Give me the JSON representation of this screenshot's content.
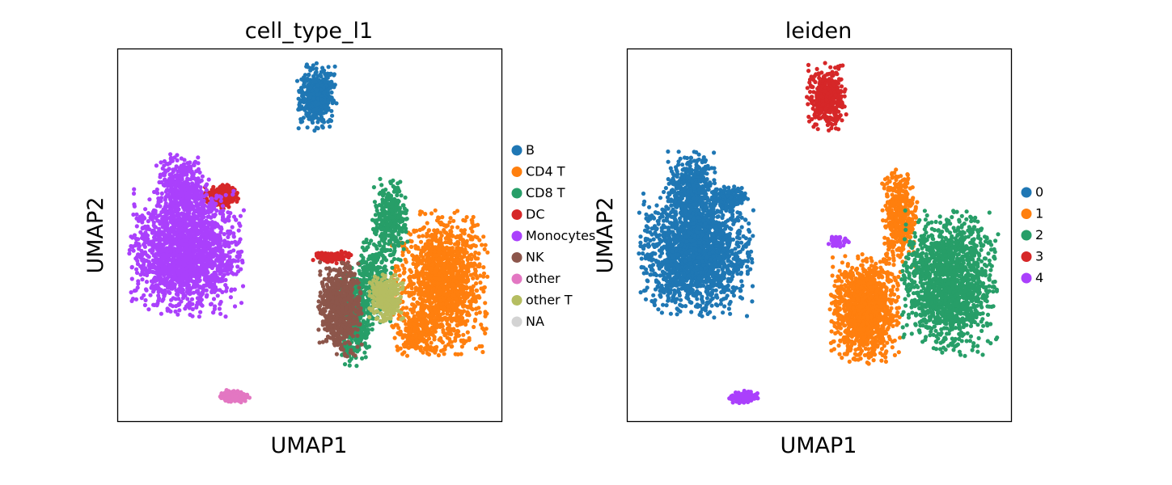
{
  "chart_data": [
    {
      "type": "scatter",
      "title": "cell_type_l1",
      "xlabel": "UMAP1",
      "ylabel": "UMAP2",
      "xlim": [
        0,
        100
      ],
      "ylim": [
        0,
        100
      ],
      "grid": false,
      "ticks": false,
      "legend_position": "right",
      "series": [
        {
          "name": "B",
          "color": "#1f77b4",
          "clusters": [
            {
              "cx": 52,
              "cy": 87,
              "rx": 4.5,
              "ry": 8,
              "n": 420
            }
          ]
        },
        {
          "name": "CD4 T",
          "color": "#ff7f0e",
          "clusters": [
            {
              "cx": 84,
              "cy": 37,
              "rx": 11,
              "ry": 17,
              "n": 1400
            },
            {
              "cx": 78,
              "cy": 24,
              "rx": 5,
              "ry": 6,
              "n": 200
            }
          ]
        },
        {
          "name": "CD8 T",
          "color": "#279e68",
          "clusters": [
            {
              "cx": 71,
              "cy": 54,
              "rx": 4,
              "ry": 10,
              "n": 320
            },
            {
              "cx": 62,
              "cy": 28,
              "rx": 4,
              "ry": 12,
              "n": 400
            },
            {
              "cx": 67,
              "cy": 38,
              "rx": 4,
              "ry": 10,
              "n": 260
            }
          ]
        },
        {
          "name": "DC",
          "color": "#d62728",
          "clusters": [
            {
              "cx": 27,
              "cy": 60,
              "rx": 4,
              "ry": 3,
              "n": 200
            },
            {
              "cx": 56,
              "cy": 44,
              "rx": 4.5,
              "ry": 1.5,
              "n": 110
            }
          ]
        },
        {
          "name": "Monocytes",
          "color": "#aa40fc",
          "clusters": [
            {
              "cx": 18,
              "cy": 45,
              "rx": 13,
              "ry": 15,
              "n": 1800
            },
            {
              "cx": 17,
              "cy": 62,
              "rx": 6,
              "ry": 9,
              "n": 420
            }
          ]
        },
        {
          "name": "NK",
          "color": "#8c564b",
          "clusters": [
            {
              "cx": 58,
              "cy": 30,
              "rx": 5,
              "ry": 11,
              "n": 650
            }
          ]
        },
        {
          "name": "other",
          "color": "#e377c2",
          "clusters": [
            {
              "cx": 30.5,
              "cy": 6.5,
              "rx": 3.5,
              "ry": 1.6,
              "n": 150
            }
          ]
        },
        {
          "name": "other T",
          "color": "#b5bd61",
          "clusters": [
            {
              "cx": 70,
              "cy": 33,
              "rx": 4,
              "ry": 6,
              "n": 280
            }
          ]
        },
        {
          "name": "NA",
          "color": "#d3d3d3",
          "clusters": []
        }
      ]
    },
    {
      "type": "scatter",
      "title": "leiden",
      "xlabel": "UMAP1",
      "ylabel": "UMAP2",
      "xlim": [
        0,
        100
      ],
      "ylim": [
        0,
        100
      ],
      "grid": false,
      "ticks": false,
      "legend_position": "right",
      "series": [
        {
          "name": "0",
          "color": "#1f77b4",
          "clusters": [
            {
              "cx": 18,
              "cy": 45,
              "rx": 13,
              "ry": 15,
              "n": 1800
            },
            {
              "cx": 17,
              "cy": 62,
              "rx": 6,
              "ry": 9,
              "n": 420
            },
            {
              "cx": 27,
              "cy": 60,
              "rx": 4,
              "ry": 3,
              "n": 140
            }
          ]
        },
        {
          "name": "1",
          "color": "#ff7f0e",
          "clusters": [
            {
              "cx": 62,
              "cy": 30,
              "rx": 8,
              "ry": 13,
              "n": 1200
            },
            {
              "cx": 71,
              "cy": 55,
              "rx": 4,
              "ry": 12,
              "n": 420
            }
          ]
        },
        {
          "name": "2",
          "color": "#279e68",
          "clusters": [
            {
              "cx": 84,
              "cy": 37,
              "rx": 11,
              "ry": 17,
              "n": 1500
            }
          ]
        },
        {
          "name": "3",
          "color": "#d62728",
          "clusters": [
            {
              "cx": 52,
              "cy": 87,
              "rx": 4.5,
              "ry": 8,
              "n": 420
            }
          ]
        },
        {
          "name": "4",
          "color": "#aa40fc",
          "clusters": [
            {
              "cx": 30.5,
              "cy": 6.5,
              "rx": 3.5,
              "ry": 1.6,
              "n": 150
            },
            {
              "cx": 55,
              "cy": 48,
              "rx": 2.5,
              "ry": 1.3,
              "n": 50
            }
          ]
        }
      ]
    }
  ]
}
